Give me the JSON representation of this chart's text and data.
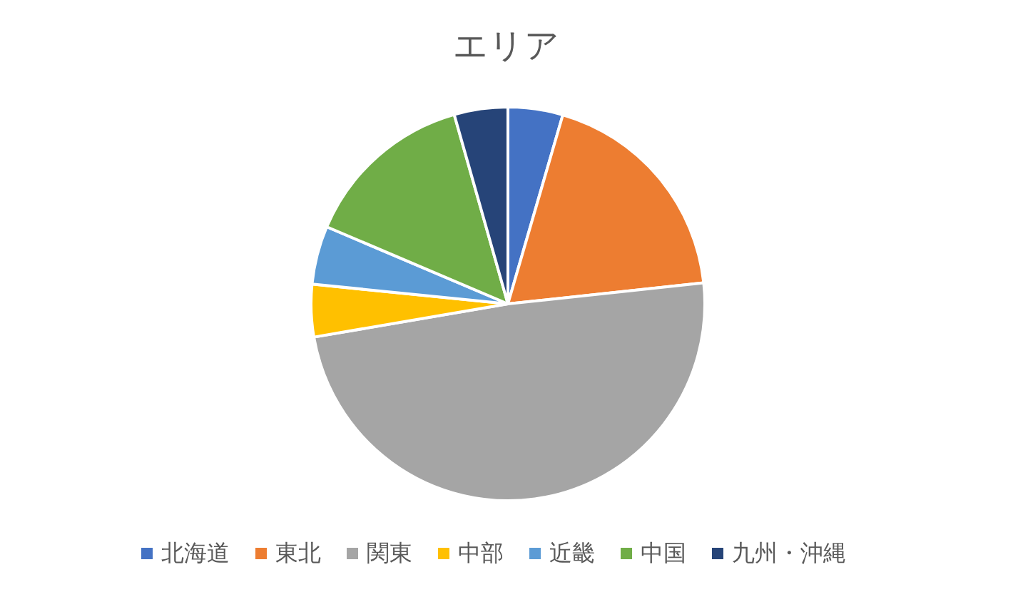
{
  "chart_data": {
    "type": "pie",
    "title": "エリア",
    "categories": [
      "北海道",
      "東北",
      "関東",
      "中部",
      "近畿",
      "中国",
      "九州・沖縄"
    ],
    "values": [
      4.5,
      18.8,
      49,
      4.3,
      4.8,
      14.2,
      4.4
    ],
    "colors": [
      "#4472c4",
      "#ed7d31",
      "#a5a5a5",
      "#ffc000",
      "#5b9bd5",
      "#70ad47",
      "#264478"
    ],
    "legend": "bottom"
  }
}
